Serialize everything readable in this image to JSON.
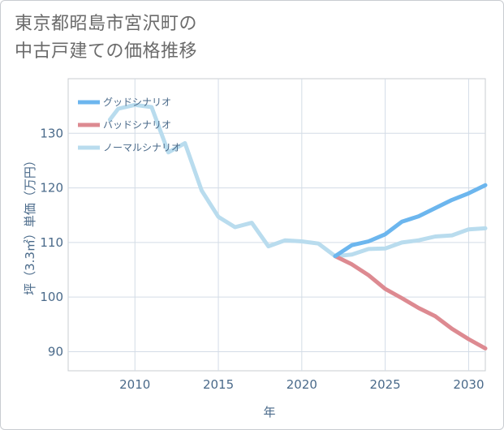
{
  "title_line1": "東京都昭島市宮沢町の",
  "title_line2": "中古戸建ての価格推移",
  "chart_data": {
    "type": "line",
    "title": "東京都昭島市宮沢町の中古戸建ての価格推移",
    "xlabel": "年",
    "ylabel": "坪（3.3㎡）単価（万円）",
    "xlim": [
      2006,
      2031
    ],
    "ylim": [
      86.5,
      140
    ],
    "x_ticks": [
      2010,
      2015,
      2020,
      2025,
      2030
    ],
    "y_ticks": [
      90,
      100,
      110,
      120,
      130
    ],
    "x_tick_labels": [
      "2010",
      "2015",
      "2020",
      "2025",
      "2030"
    ],
    "y_tick_labels": [
      "90",
      "100",
      "110",
      "120",
      "130"
    ],
    "grid": true,
    "legend_position": "top-left",
    "series": [
      {
        "name": "グッドシナリオ",
        "color": "#6cb6ee",
        "x": [
          2022,
          2023,
          2024,
          2025,
          2026,
          2027,
          2028,
          2029,
          2030,
          2031
        ],
        "values": [
          107.5,
          109.5,
          110.2,
          111.5,
          113.8,
          114.8,
          116.3,
          117.8,
          119.0,
          120.5
        ]
      },
      {
        "name": "バッドシナリオ",
        "color": "#dd8a91",
        "x": [
          2022,
          2023,
          2024,
          2025,
          2026,
          2027,
          2028,
          2029,
          2030,
          2031
        ],
        "values": [
          107.5,
          106.0,
          104.0,
          101.5,
          99.8,
          98.0,
          96.5,
          94.2,
          92.3,
          90.6
        ]
      },
      {
        "name": "ノーマルシナリオ",
        "color": "#b9dcee",
        "x": [
          2008.5,
          2009,
          2010,
          2011,
          2012,
          2013,
          2014,
          2015,
          2016,
          2017,
          2018,
          2019,
          2020,
          2021,
          2022,
          2023,
          2024,
          2025,
          2026,
          2027,
          2028,
          2029,
          2030,
          2031
        ],
        "values": [
          132.5,
          134.5,
          135.2,
          134.8,
          126.5,
          128.2,
          119.5,
          114.7,
          112.8,
          113.6,
          109.3,
          110.4,
          110.2,
          109.8,
          107.5,
          107.8,
          108.8,
          108.9,
          110.0,
          110.4,
          111.1,
          111.3,
          112.4,
          112.6
        ]
      }
    ]
  }
}
